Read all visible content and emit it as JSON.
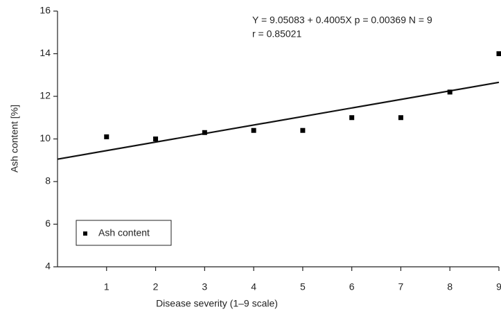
{
  "chart_data": {
    "type": "scatter",
    "x_label": "Disease severity (1–9 scale)",
    "y_label": "Ash content [%]",
    "annotations": [
      "Y  = 9.05083 + 0.4005X  p = 0.00369  N = 9",
      "r =  0.85021"
    ],
    "x": [
      1,
      2,
      3,
      4,
      5,
      6,
      7,
      8,
      9
    ],
    "series": [
      {
        "name": "Ash content",
        "color": "#000000",
        "values": [
          10.1,
          10.0,
          10.3,
          10.4,
          10.4,
          11.0,
          11.0,
          12.2,
          14.0
        ]
      }
    ],
    "regression": {
      "intercept": 9.05083,
      "slope": 0.4005
    },
    "xlim": [
      0,
      9
    ],
    "xticks": [
      1,
      2,
      3,
      4,
      5,
      6,
      7,
      8,
      9
    ],
    "ylim": [
      4,
      16
    ],
    "yticks": [
      4,
      6,
      8,
      10,
      12,
      14,
      16
    ],
    "grid": false,
    "legend": "lower left"
  }
}
